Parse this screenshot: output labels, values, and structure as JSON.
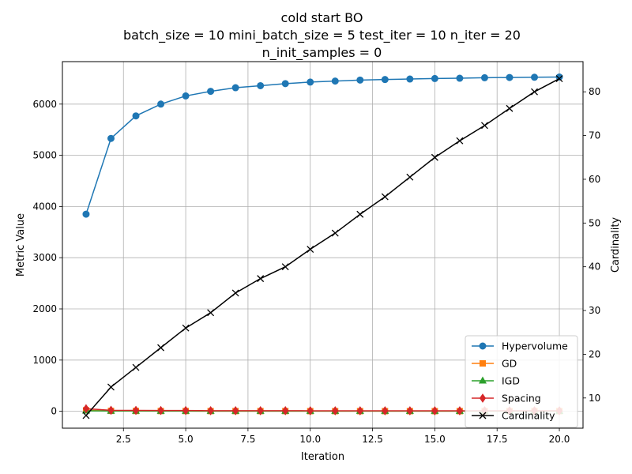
{
  "chart_data": {
    "type": "line",
    "title_lines": [
      "cold start BO",
      "batch_size = 10 mini_batch_size = 5 test_iter = 10 n_iter = 20",
      "n_init_samples = 0"
    ],
    "xlabel": "Iteration",
    "ylabel": "Metric Value",
    "y2label": "Cardinality",
    "xlim": [
      0.05,
      20.95
    ],
    "ylim": [
      -330,
      6830
    ],
    "y2lim": [
      3.1,
      86.9
    ],
    "xticks": [
      2.5,
      5.0,
      7.5,
      10.0,
      12.5,
      15.0,
      17.5,
      20.0
    ],
    "xtick_labels": [
      "2.5",
      "5.0",
      "7.5",
      "10.0",
      "12.5",
      "15.0",
      "17.5",
      "20.0"
    ],
    "yticks": [
      0,
      1000,
      2000,
      3000,
      4000,
      5000,
      6000
    ],
    "ytick_labels": [
      "0",
      "1000",
      "2000",
      "3000",
      "4000",
      "5000",
      "6000"
    ],
    "y2ticks": [
      10,
      20,
      30,
      40,
      50,
      60,
      70,
      80
    ],
    "y2tick_labels": [
      "10",
      "20",
      "30",
      "40",
      "50",
      "60",
      "70",
      "80"
    ],
    "grid": true,
    "legend_position": "lower-right",
    "x": [
      1,
      2,
      3,
      4,
      5,
      6,
      7,
      8,
      9,
      10,
      11,
      12,
      13,
      14,
      15,
      16,
      17,
      18,
      19,
      20
    ],
    "series": [
      {
        "name": "Hypervolume",
        "axis": "left",
        "color": "#1f77b4",
        "marker": "circle",
        "values": [
          3850,
          5330,
          5770,
          6000,
          6160,
          6250,
          6320,
          6360,
          6400,
          6430,
          6450,
          6470,
          6480,
          6490,
          6500,
          6505,
          6515,
          6520,
          6525,
          6530
        ]
      },
      {
        "name": "GD",
        "axis": "left",
        "color": "#ff7f0e",
        "marker": "square",
        "values": [
          20,
          8,
          6,
          5,
          5,
          4,
          4,
          4,
          4,
          3,
          3,
          3,
          3,
          3,
          3,
          3,
          3,
          3,
          3,
          3
        ]
      },
      {
        "name": "IGD",
        "axis": "left",
        "color": "#2ca02c",
        "marker": "triangle",
        "values": [
          10,
          6,
          5,
          4,
          4,
          3,
          3,
          3,
          3,
          3,
          3,
          3,
          3,
          3,
          3,
          3,
          3,
          3,
          3,
          3
        ]
      },
      {
        "name": "Spacing",
        "axis": "left",
        "color": "#d62728",
        "marker": "diamond",
        "values": [
          50,
          20,
          18,
          15,
          15,
          12,
          12,
          12,
          12,
          10,
          10,
          10,
          10,
          10,
          10,
          10,
          10,
          10,
          10,
          10
        ]
      },
      {
        "name": "Cardinality",
        "axis": "right",
        "color": "#000000",
        "marker": "x",
        "values": [
          6,
          12.5,
          17,
          21.5,
          26,
          29.5,
          34,
          37.3,
          40,
          44,
          47.7,
          52,
          56,
          60.5,
          65,
          68.8,
          72.3,
          76.2,
          80,
          83
        ]
      }
    ]
  }
}
